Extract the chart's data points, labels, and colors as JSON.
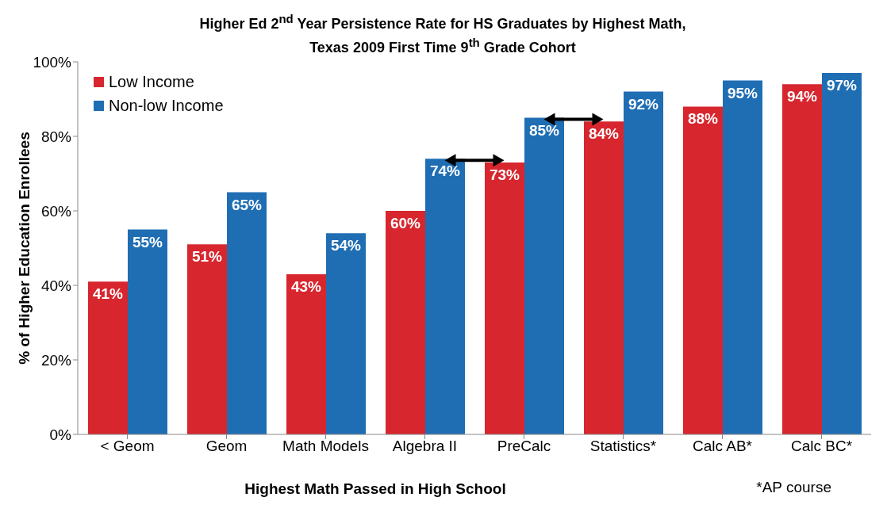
{
  "chart_data": {
    "type": "bar",
    "title": "Higher Ed 2$^{nd}$ Year Persistence Rate for HS Graduates by Highest Math,\nTexas 2009 First Time 9$^{th}$ Grade Cohort",
    "xlabel": "Highest Math Passed in High School",
    "ylabel": "% of Higher Education Enrollees",
    "annotations": [
      "*AP course"
    ],
    "categories": [
      "< Geom",
      "Geom",
      "Math Models",
      "Algebra II",
      "PreCalc",
      "Statistics*",
      "Calc AB*",
      "Calc BC*"
    ],
    "series": [
      {
        "name": "Low Income",
        "color": "#d7262e",
        "values": [
          41,
          51,
          43,
          60,
          73,
          84,
          88,
          94
        ],
        "value_labels": [
          "41%",
          "51%",
          "43%",
          "60%",
          "73%",
          "84%",
          "88%",
          "94%"
        ]
      },
      {
        "name": "Non-low Income",
        "color": "#1f6eb4",
        "values": [
          55,
          65,
          54,
          74,
          85,
          92,
          95,
          97
        ],
        "value_labels": [
          "55%",
          "65%",
          "54%",
          "74%",
          "85%",
          "92%",
          "95%",
          "97%"
        ]
      }
    ],
    "ylim": [
      0,
      100
    ],
    "yticks": [
      {
        "value": 0,
        "label": "0%"
      },
      {
        "value": 20,
        "label": "20%"
      },
      {
        "value": 40,
        "label": "40%"
      },
      {
        "value": 60,
        "label": "60%"
      },
      {
        "value": 80,
        "label": "80%"
      },
      {
        "value": 100,
        "label": "100%"
      }
    ],
    "grid": false,
    "legend": "top left"
  }
}
